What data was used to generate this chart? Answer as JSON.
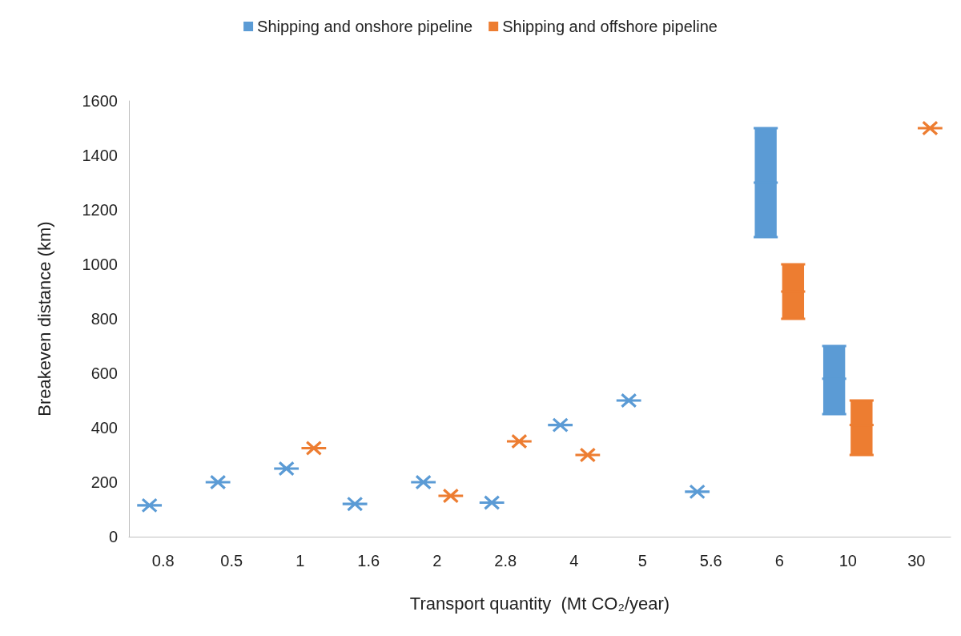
{
  "chart_data": {
    "type": "box",
    "xlabel": "Transport quantity  (Mt CO₂/year)",
    "ylabel": "Breakeven distance (km)",
    "categories": [
      "0.8",
      "0.5",
      "1",
      "1.6",
      "2",
      "2.8",
      "4",
      "5",
      "5.6",
      "6",
      "10",
      "30"
    ],
    "ylim": [
      0,
      1600
    ],
    "yticks": [
      0,
      200,
      400,
      600,
      800,
      {
        "value": 1000,
        "label": "1000"
      },
      {
        "value": 1200,
        "label": "1200"
      },
      {
        "value": 1400,
        "label": "1400"
      },
      {
        "value": 1600,
        "label": "1600"
      }
    ],
    "grid": false,
    "legend": "top",
    "marker": "star",
    "series": [
      {
        "type": "scatter",
        "name": "Shipping and onshore pipeline",
        "color": "#5b9bd5",
        "values": [
          115,
          200,
          250,
          120,
          200,
          125,
          410,
          500,
          165,
          null,
          null,
          null
        ]
      },
      {
        "type": "scatter",
        "name": "Shipping and offshore pipeline",
        "color": "#ed7d31",
        "values": [
          null,
          null,
          325,
          null,
          150,
          350,
          300,
          null,
          null,
          null,
          null,
          1500
        ]
      },
      {
        "color": "#5b9bd5",
        "boxes": [
          null,
          null,
          null,
          null,
          null,
          null,
          null,
          null,
          null,
          {
            "low": 1100,
            "q1": 1100,
            "median": 1300,
            "q3": 1500,
            "high": 1500
          },
          {
            "low": 450,
            "q1": 450,
            "median": 580,
            "q3": 700,
            "high": 700
          },
          null
        ]
      },
      {
        "color": "#ed7d31",
        "boxes": [
          null,
          null,
          null,
          null,
          null,
          null,
          null,
          null,
          null,
          {
            "low": 800,
            "q1": 800,
            "median": 900,
            "q3": 1000,
            "high": 1000
          },
          {
            "low": 300,
            "q1": 300,
            "median": 410,
            "q3": 500,
            "high": 500
          },
          null
        ]
      }
    ]
  }
}
